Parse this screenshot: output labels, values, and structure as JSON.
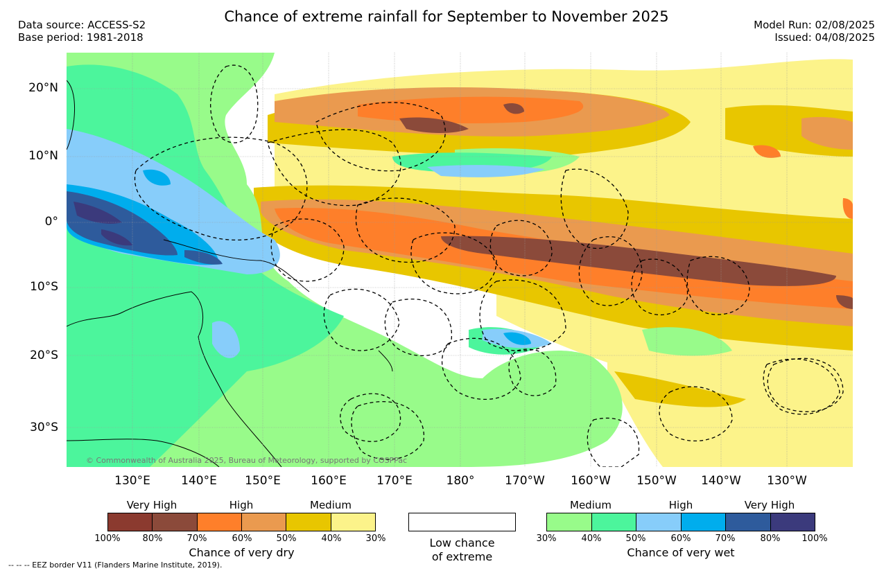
{
  "title": "Chance of extreme rainfall for September to November 2025",
  "header_left": {
    "data_source": "Data source: ACCESS-S2",
    "base_period": "Base period: 1981-2018"
  },
  "header_right": {
    "model_run": "Model Run: 02/08/2025",
    "issued": "Issued: 04/08/2025"
  },
  "map": {
    "lat_labels": [
      "20°N",
      "10°N",
      "0°",
      "10°S",
      "20°S",
      "30°S"
    ],
    "lon_labels": [
      "130°E",
      "140°E",
      "150°E",
      "160°E",
      "170°E",
      "180°",
      "170°W",
      "160°W",
      "150°W",
      "140°W",
      "130°W"
    ],
    "copyright": "© Commonwealth of Australia 2025, Bureau of Meteorology, supported by COSPPac"
  },
  "legend_dry": {
    "category_labels": [
      "Very High",
      "High",
      "Medium"
    ],
    "colors": [
      "#8b3a2f",
      "#8b4a3a",
      "#fe7f2a",
      "#ea9a4f",
      "#e8c600",
      "#fcf38a"
    ],
    "ticks": [
      "100%",
      "80%",
      "70%",
      "60%",
      "50%",
      "40%",
      "30%"
    ],
    "title": "Chance of very dry"
  },
  "legend_low": {
    "color": "#ffffff",
    "label_line1": "Low chance",
    "label_line2": "of extreme"
  },
  "legend_wet": {
    "category_labels": [
      "Medium",
      "High",
      "Very High"
    ],
    "colors": [
      "#98fb8a",
      "#4cf59c",
      "#87cdfa",
      "#00aded",
      "#2e5b9c",
      "#3b3a7c"
    ],
    "ticks": [
      "30%",
      "40%",
      "50%",
      "60%",
      "70%",
      "80%",
      "100%"
    ],
    "title": "Chance of very wet"
  },
  "eez_note": "--  --  -- EEZ border V11 (Flanders Marine Institute, 2019)."
}
